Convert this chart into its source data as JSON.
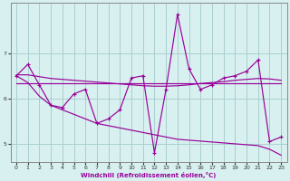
{
  "x": [
    0,
    1,
    2,
    3,
    4,
    5,
    6,
    7,
    8,
    9,
    10,
    11,
    12,
    13,
    14,
    15,
    16,
    17,
    18,
    19,
    20,
    21,
    22,
    23
  ],
  "y_main": [
    6.5,
    6.75,
    6.3,
    5.85,
    5.8,
    6.1,
    6.2,
    5.45,
    5.55,
    5.75,
    6.45,
    6.5,
    4.8,
    6.2,
    7.85,
    6.65,
    6.2,
    6.3,
    6.45,
    6.5,
    6.6,
    6.85,
    5.05,
    5.15
  ],
  "y_min": [
    6.5,
    6.35,
    6.05,
    5.85,
    5.75,
    5.65,
    5.55,
    5.45,
    5.4,
    5.35,
    5.3,
    5.25,
    5.2,
    5.15,
    5.1,
    5.08,
    5.06,
    5.04,
    5.02,
    5.0,
    4.98,
    4.96,
    4.88,
    4.75
  ],
  "y_max": [
    6.52,
    6.52,
    6.48,
    6.44,
    6.42,
    6.4,
    6.38,
    6.36,
    6.34,
    6.32,
    6.3,
    6.28,
    6.27,
    6.27,
    6.28,
    6.3,
    6.33,
    6.35,
    6.37,
    6.4,
    6.42,
    6.44,
    6.43,
    6.4
  ],
  "y_avg": [
    6.33,
    6.33,
    6.33,
    6.33,
    6.33,
    6.33,
    6.33,
    6.33,
    6.33,
    6.33,
    6.33,
    6.33,
    6.33,
    6.33,
    6.33,
    6.33,
    6.33,
    6.33,
    6.33,
    6.33,
    6.33,
    6.33,
    6.33,
    6.33
  ],
  "line_color": "#990099",
  "bg_color": "#d8f0f0",
  "grid_color": "#aacece",
  "xlabel": "Windchill (Refroidissement éolien,°C)",
  "xlim": [
    -0.5,
    23.5
  ],
  "ylim": [
    4.6,
    8.1
  ],
  "yticks": [
    5,
    6,
    7
  ],
  "xticks": [
    0,
    1,
    2,
    3,
    4,
    5,
    6,
    7,
    8,
    9,
    10,
    11,
    12,
    13,
    14,
    15,
    16,
    17,
    18,
    19,
    20,
    21,
    22,
    23
  ]
}
